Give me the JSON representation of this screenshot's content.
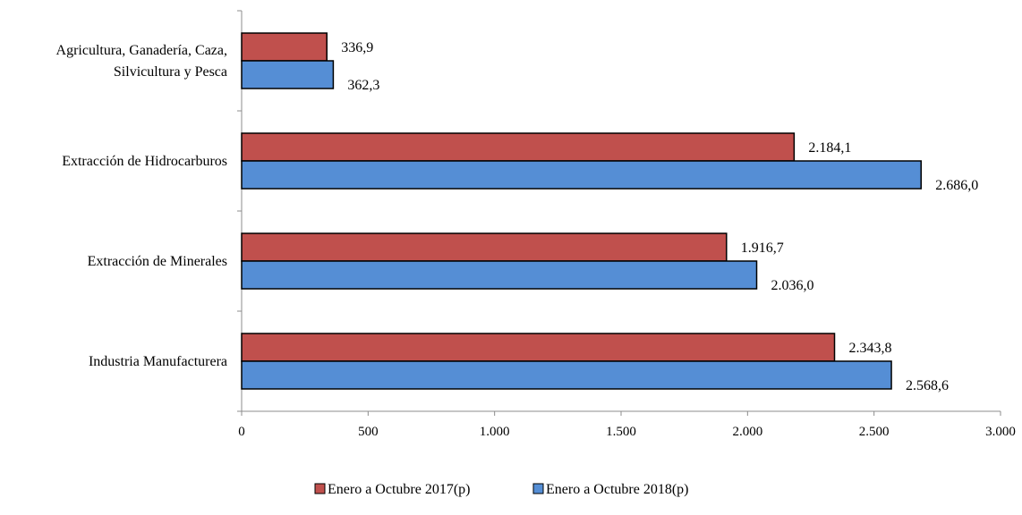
{
  "chart_data": {
    "type": "bar",
    "orientation": "horizontal",
    "categories": [
      [
        "Agricultura, Ganadería, Caza,",
        "Silvicultura y Pesca"
      ],
      [
        "Extracción de Hidrocarburos"
      ],
      [
        "Extracción de Minerales"
      ],
      [
        "Industria Manufacturera"
      ]
    ],
    "series": [
      {
        "name": "Enero a Octubre 2017(p)",
        "color": "#c0504d",
        "values": [
          336.9,
          2184.1,
          1916.7,
          2343.8
        ],
        "labels": [
          "336,9",
          "2.184,1",
          "1.916,7",
          "2.343,8"
        ]
      },
      {
        "name": "Enero a Octubre 2018(p)",
        "color": "#558ed5",
        "values": [
          362.3,
          2686.0,
          2036.0,
          2568.6
        ],
        "labels": [
          "362,3",
          "2.686,0",
          "2.036,0",
          "2.568,6"
        ]
      }
    ],
    "xlim": [
      0,
      3000
    ],
    "xticks": [
      0,
      500,
      1000,
      1500,
      2000,
      2500,
      3000
    ],
    "xtick_labels": [
      "0",
      "500",
      "1.000",
      "1.500",
      "2.000",
      "2.500",
      "3.000"
    ],
    "grid": false,
    "legend_position": "bottom"
  }
}
